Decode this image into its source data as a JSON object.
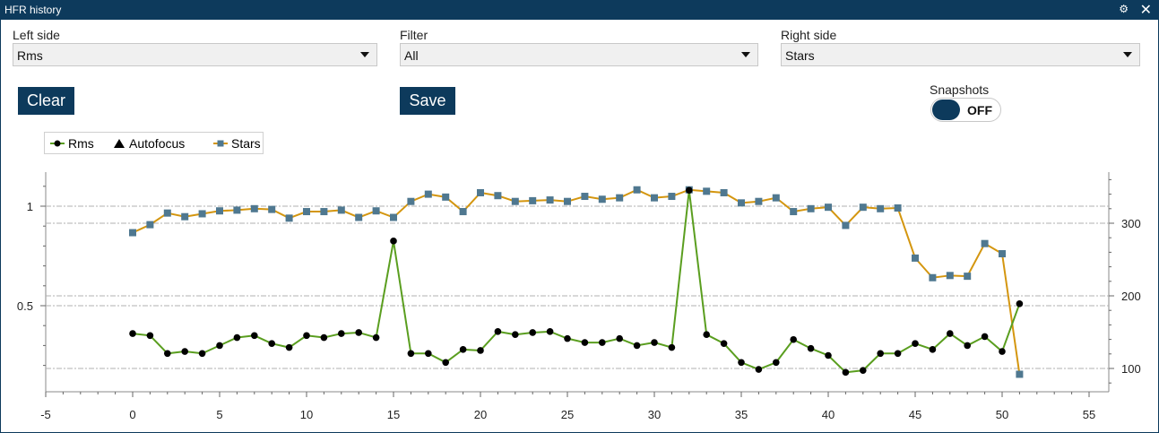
{
  "window": {
    "title": "HFR history"
  },
  "controls": {
    "left_side": {
      "label": "Left side",
      "value": "Rms"
    },
    "filter": {
      "label": "Filter",
      "value": "All"
    },
    "right_side": {
      "label": "Right side",
      "value": "Stars"
    },
    "clear_label": "Clear",
    "save_label": "Save",
    "snapshots": {
      "label": "Snapshots",
      "state": "OFF"
    }
  },
  "legend": {
    "rms": "Rms",
    "autofocus": "Autofocus",
    "stars": "Stars"
  },
  "colors": {
    "accent": "#0d3a5c",
    "rms_line": "#5a9e1f",
    "stars_line": "#d4960f",
    "stars_marker": "#4f7890",
    "rms_marker": "#000000"
  },
  "chart_data": {
    "type": "line",
    "x_range": [
      -5,
      55
    ],
    "x_ticks": [
      -5,
      0,
      5,
      10,
      15,
      20,
      25,
      30,
      35,
      40,
      45,
      50,
      55
    ],
    "y_left_ticks": [
      1,
      0.5
    ],
    "y_right_ticks": [
      300,
      200,
      100
    ],
    "series": [
      {
        "name": "Rms",
        "axis": "left",
        "x": [
          0,
          1,
          2,
          3,
          4,
          5,
          6,
          7,
          8,
          9,
          10,
          11,
          12,
          13,
          14,
          15,
          16,
          17,
          18,
          19,
          20,
          21,
          22,
          23,
          24,
          25,
          26,
          27,
          28,
          29,
          30,
          31,
          32,
          33,
          34,
          35,
          36,
          37,
          38,
          39,
          40,
          41,
          42,
          43,
          44,
          45,
          46,
          47,
          48,
          49,
          50,
          51
        ],
        "values": [
          0.36,
          0.35,
          0.26,
          0.27,
          0.26,
          0.3,
          0.34,
          0.35,
          0.31,
          0.29,
          0.35,
          0.34,
          0.36,
          0.365,
          0.34,
          0.825,
          0.26,
          0.26,
          0.215,
          0.28,
          0.275,
          0.37,
          0.355,
          0.365,
          0.37,
          0.335,
          0.315,
          0.315,
          0.335,
          0.3,
          0.315,
          0.29,
          1.08,
          0.355,
          0.31,
          0.215,
          0.18,
          0.215,
          0.33,
          0.285,
          0.25,
          0.165,
          0.175,
          0.26,
          0.26,
          0.31,
          0.28,
          0.36,
          0.3,
          0.345,
          0.27,
          0.51
        ]
      },
      {
        "name": "Stars",
        "axis": "right",
        "x": [
          0,
          1,
          2,
          3,
          4,
          5,
          6,
          7,
          8,
          9,
          10,
          11,
          12,
          13,
          14,
          15,
          16,
          17,
          18,
          19,
          20,
          21,
          22,
          23,
          24,
          25,
          26,
          27,
          28,
          29,
          30,
          31,
          32,
          33,
          34,
          35,
          36,
          37,
          38,
          39,
          40,
          41,
          42,
          43,
          44,
          45,
          46,
          47,
          48,
          49,
          50,
          51
        ],
        "values": [
          287,
          298,
          314,
          309,
          313,
          317,
          318,
          320,
          319,
          307,
          316,
          316,
          318,
          308,
          317,
          308,
          330,
          340,
          336,
          316,
          342,
          338,
          330,
          331,
          332,
          330,
          337,
          333,
          335,
          346,
          335,
          337,
          346,
          344,
          342,
          328,
          330,
          335,
          316,
          320,
          322,
          297,
          322,
          320,
          321,
          252,
          225,
          228,
          227,
          272,
          258,
          92
        ]
      },
      {
        "name": "Autofocus",
        "axis": "left",
        "x": [],
        "values": []
      }
    ]
  }
}
